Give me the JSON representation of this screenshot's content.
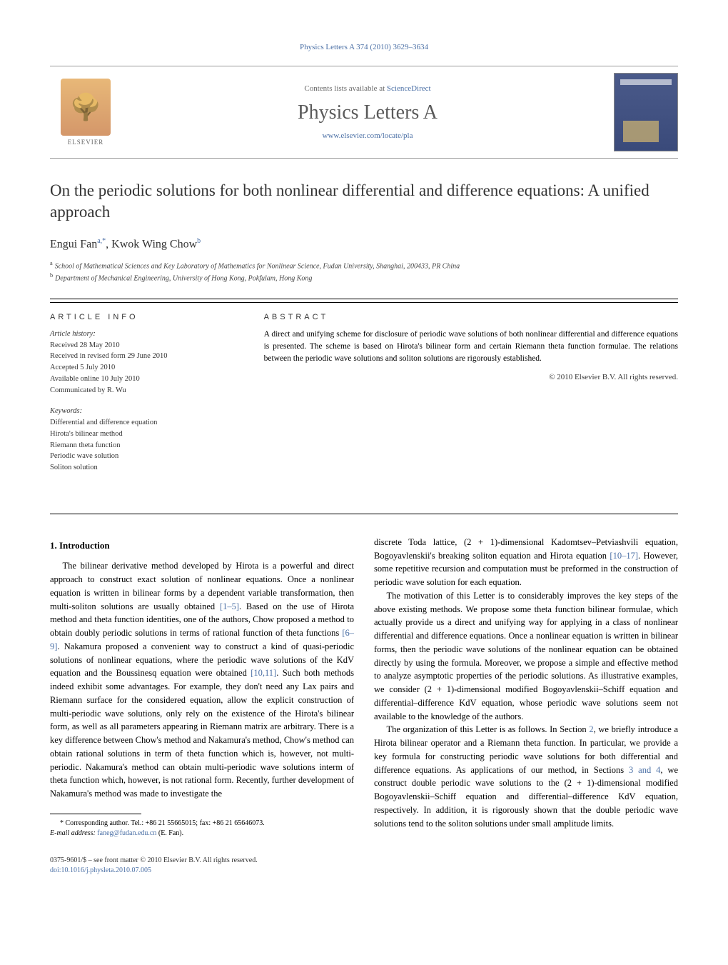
{
  "citation": "Physics Letters A 374 (2010) 3629–3634",
  "header": {
    "contents_prefix": "Contents lists available at ",
    "contents_link": "ScienceDirect",
    "journal_name": "Physics Letters A",
    "journal_url": "www.elsevier.com/locate/pla",
    "publisher": "ELSEVIER"
  },
  "title": "On the periodic solutions for both nonlinear differential and difference equations: A unified approach",
  "authors": [
    {
      "name": "Engui Fan",
      "marks": "a,*"
    },
    {
      "name": "Kwok Wing Chow",
      "marks": "b"
    }
  ],
  "affiliations": [
    {
      "mark": "a",
      "text": "School of Mathematical Sciences and Key Laboratory of Mathematics for Nonlinear Science, Fudan University, Shanghai, 200433, PR China"
    },
    {
      "mark": "b",
      "text": "Department of Mechanical Engineering, University of Hong Kong, Pokfulam, Hong Kong"
    }
  ],
  "info": {
    "heading": "ARTICLE INFO",
    "history_label": "Article history:",
    "history": [
      "Received 28 May 2010",
      "Received in revised form 29 June 2010",
      "Accepted 5 July 2010",
      "Available online 10 July 2010",
      "Communicated by R. Wu"
    ],
    "keywords_label": "Keywords:",
    "keywords": [
      "Differential and difference equation",
      "Hirota's bilinear method",
      "Riemann theta function",
      "Periodic wave solution",
      "Soliton solution"
    ]
  },
  "abstract": {
    "heading": "ABSTRACT",
    "text": "A direct and unifying scheme for disclosure of periodic wave solutions of both nonlinear differential and difference equations is presented. The scheme is based on Hirota's bilinear form and certain Riemann theta function formulae. The relations between the periodic wave solutions and soliton solutions are rigorously established.",
    "copyright": "© 2010 Elsevier B.V. All rights reserved."
  },
  "body": {
    "section_heading": "1. Introduction",
    "p1a": "The bilinear derivative method developed by Hirota is a powerful and direct approach to construct exact solution of nonlinear equations. Once a nonlinear equation is written in bilinear forms by a dependent variable transformation, then multi-soliton solutions are usually obtained ",
    "ref1": "[1–5]",
    "p1b": ". Based on the use of Hirota method and theta function identities, one of the authors, Chow proposed a method to obtain doubly periodic solutions in terms of rational function of theta functions ",
    "ref2": "[6–9]",
    "p1c": ". Nakamura proposed a convenient way to construct a kind of quasi-periodic solutions of nonlinear equations, where the periodic wave solutions of the KdV equation and the Boussinesq equation were obtained ",
    "ref3": "[10,11]",
    "p1d": ". Such both methods indeed exhibit some advantages. For example, they don't need any Lax pairs and Riemann surface for the considered equation, allow the explicit construction of multi-periodic wave solutions, only rely on the existence of the Hirota's bilinear form, as well as all parameters appearing in Riemann matrix are arbitrary. There is a key difference between Chow's method and Nakamura's method, Chow's method can obtain rational solutions in term of theta function which is, however, not multi-periodic. Nakamura's method can obtain multi-periodic wave solutions interm of theta function which, however, is not rational form. Recently, further development of Nakamura's method was made to investigate the ",
    "p2a": "discrete Toda lattice, (2 + 1)-dimensional Kadomtsev–Petviashvili equation, Bogoyavlenskii's breaking soliton equation and Hirota equation ",
    "ref4": "[10–17]",
    "p2b": ". However, some repetitive recursion and computation must be preformed in the construction of periodic wave solution for each equation.",
    "p3": "The motivation of this Letter is to considerably improves the key steps of the above existing methods. We propose some theta function bilinear formulae, which actually provide us a direct and unifying way for applying in a class of nonlinear differential and difference equations. Once a nonlinear equation is written in bilinear forms, then the periodic wave solutions of the nonlinear equation can be obtained directly by using the formula. Moreover, we propose a simple and effective method to analyze asymptotic properties of the periodic solutions. As illustrative examples, we consider (2 + 1)-dimensional modified Bogoyavlenskii–Schiff equation and differential–difference KdV equation, whose periodic wave solutions seem not available to the knowledge of the authors.",
    "p4a": "The organization of this Letter is as follows. In Section ",
    "ref5": "2",
    "p4b": ", we briefly introduce a Hirota bilinear operator and a Riemann theta function. In particular, we provide a key formula for constructing periodic wave solutions for both differential and difference equations. As applications of our method, in Sections ",
    "ref6": "3 and 4",
    "p4c": ", we construct double periodic wave solutions to the (2 + 1)-dimensional modified Bogoyavlenskii–Schiff equation and differential–difference KdV equation, respectively. In addition, it is rigorously shown that the double periodic wave solutions tend to the soliton solutions under small amplitude limits."
  },
  "footnote": {
    "mark": "*",
    "text": "Corresponding author. Tel.: +86 21 55665015; fax: +86 21 65646073.",
    "email_label": "E-mail address: ",
    "email": "faneg@fudan.edu.cn",
    "email_suffix": " (E. Fan)."
  },
  "footer": {
    "line1": "0375-9601/$ – see front matter  © 2010 Elsevier B.V. All rights reserved.",
    "doi": "doi:10.1016/j.physleta.2010.07.005"
  },
  "colors": {
    "link": "#4a6fa5",
    "text": "#000000",
    "heading_gray": "#5a5a5a"
  }
}
